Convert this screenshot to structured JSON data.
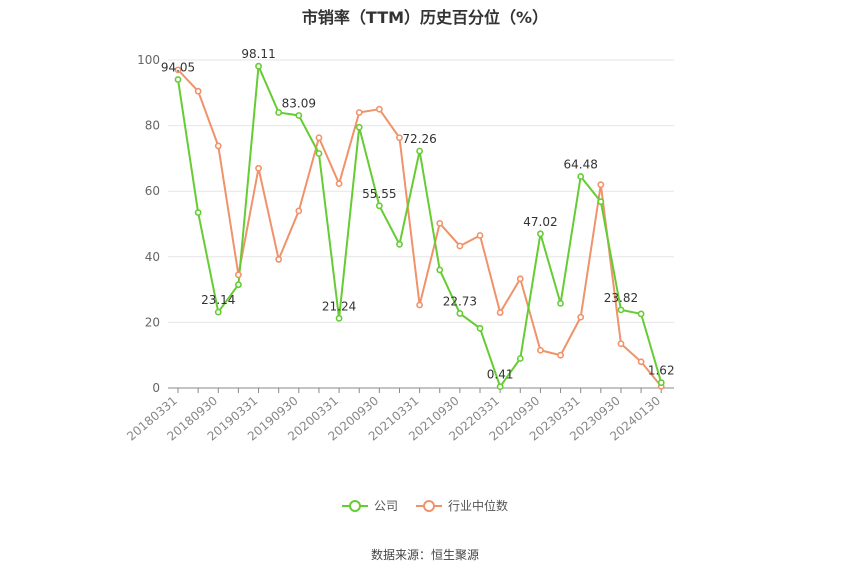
{
  "chart_data": {
    "type": "line",
    "title": "市销率（TTM）历史百分位（%）",
    "ylim": [
      0,
      100
    ],
    "yticks": [
      0,
      20,
      40,
      60,
      80,
      100
    ],
    "grid": true,
    "legend_position": "bottom",
    "x_tick_labels": [
      "20180331",
      "20180930",
      "20190331",
      "20190930",
      "20200331",
      "20200930",
      "20210331",
      "20210930",
      "20220331",
      "20220930",
      "20230331",
      "20230930",
      "20240130"
    ],
    "x": [
      "20180331",
      "20180630",
      "20180930",
      "20181231",
      "20190331",
      "20190630",
      "20190930",
      "20191231",
      "20200331",
      "20200630",
      "20200930",
      "20201231",
      "20210331",
      "20210630",
      "20210930",
      "20211231",
      "20220331",
      "20220630",
      "20220930",
      "20221231",
      "20230331",
      "20230630",
      "20230930",
      "20231231",
      "20240130"
    ],
    "series": [
      {
        "name": "公司",
        "color": "#66cc33",
        "values": [
          94.05,
          53.5,
          23.14,
          31.5,
          98.11,
          84.0,
          83.09,
          71.5,
          21.24,
          79.5,
          55.55,
          43.8,
          72.26,
          36.0,
          22.73,
          18.2,
          0.41,
          9.0,
          47.02,
          25.8,
          64.48,
          56.8,
          23.82,
          22.6,
          1.62
        ],
        "point_labels": {
          "0": "94.05",
          "2": "23.14",
          "4": "98.11",
          "6": "83.09",
          "8": "21.24",
          "10": "55.55",
          "12": "72.26",
          "14": "22.73",
          "16": "0.41",
          "18": "47.02",
          "20": "64.48",
          "22": "23.82",
          "24": "1.62"
        }
      },
      {
        "name": "行业中位数",
        "color": "#f0926a",
        "values": [
          97.0,
          90.5,
          73.8,
          34.5,
          67.0,
          39.2,
          54.0,
          76.3,
          62.3,
          84.0,
          85.0,
          76.3,
          25.3,
          50.2,
          43.3,
          46.5,
          23.0,
          33.3,
          11.5,
          10.0,
          21.6,
          62.0,
          13.5,
          8.0,
          0.5
        ]
      }
    ]
  },
  "source": "数据来源：恒生聚源"
}
